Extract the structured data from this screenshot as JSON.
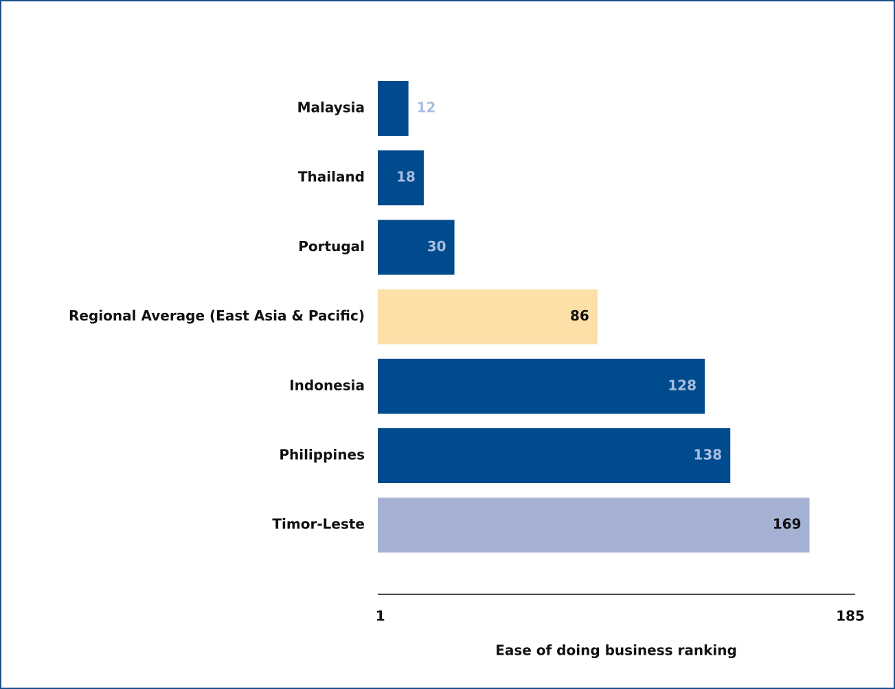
{
  "chart_data": {
    "type": "bar",
    "orientation": "horizontal",
    "categories": [
      "Malaysia",
      "Thailand",
      "Portugal",
      "Regional Average (East Asia & Pacific)",
      "Indonesia",
      "Philippines",
      "Timor-Leste"
    ],
    "values": [
      12,
      18,
      30,
      86,
      128,
      138,
      169
    ],
    "colors": [
      "#004b8d",
      "#004b8d",
      "#004b8d",
      "#fddfa8",
      "#004b8d",
      "#004b8d",
      "#a6b2d4"
    ],
    "xlabel": "Ease of doing business ranking",
    "xlim": [
      0,
      185
    ],
    "xticks": [
      1,
      185
    ],
    "grid": false
  }
}
